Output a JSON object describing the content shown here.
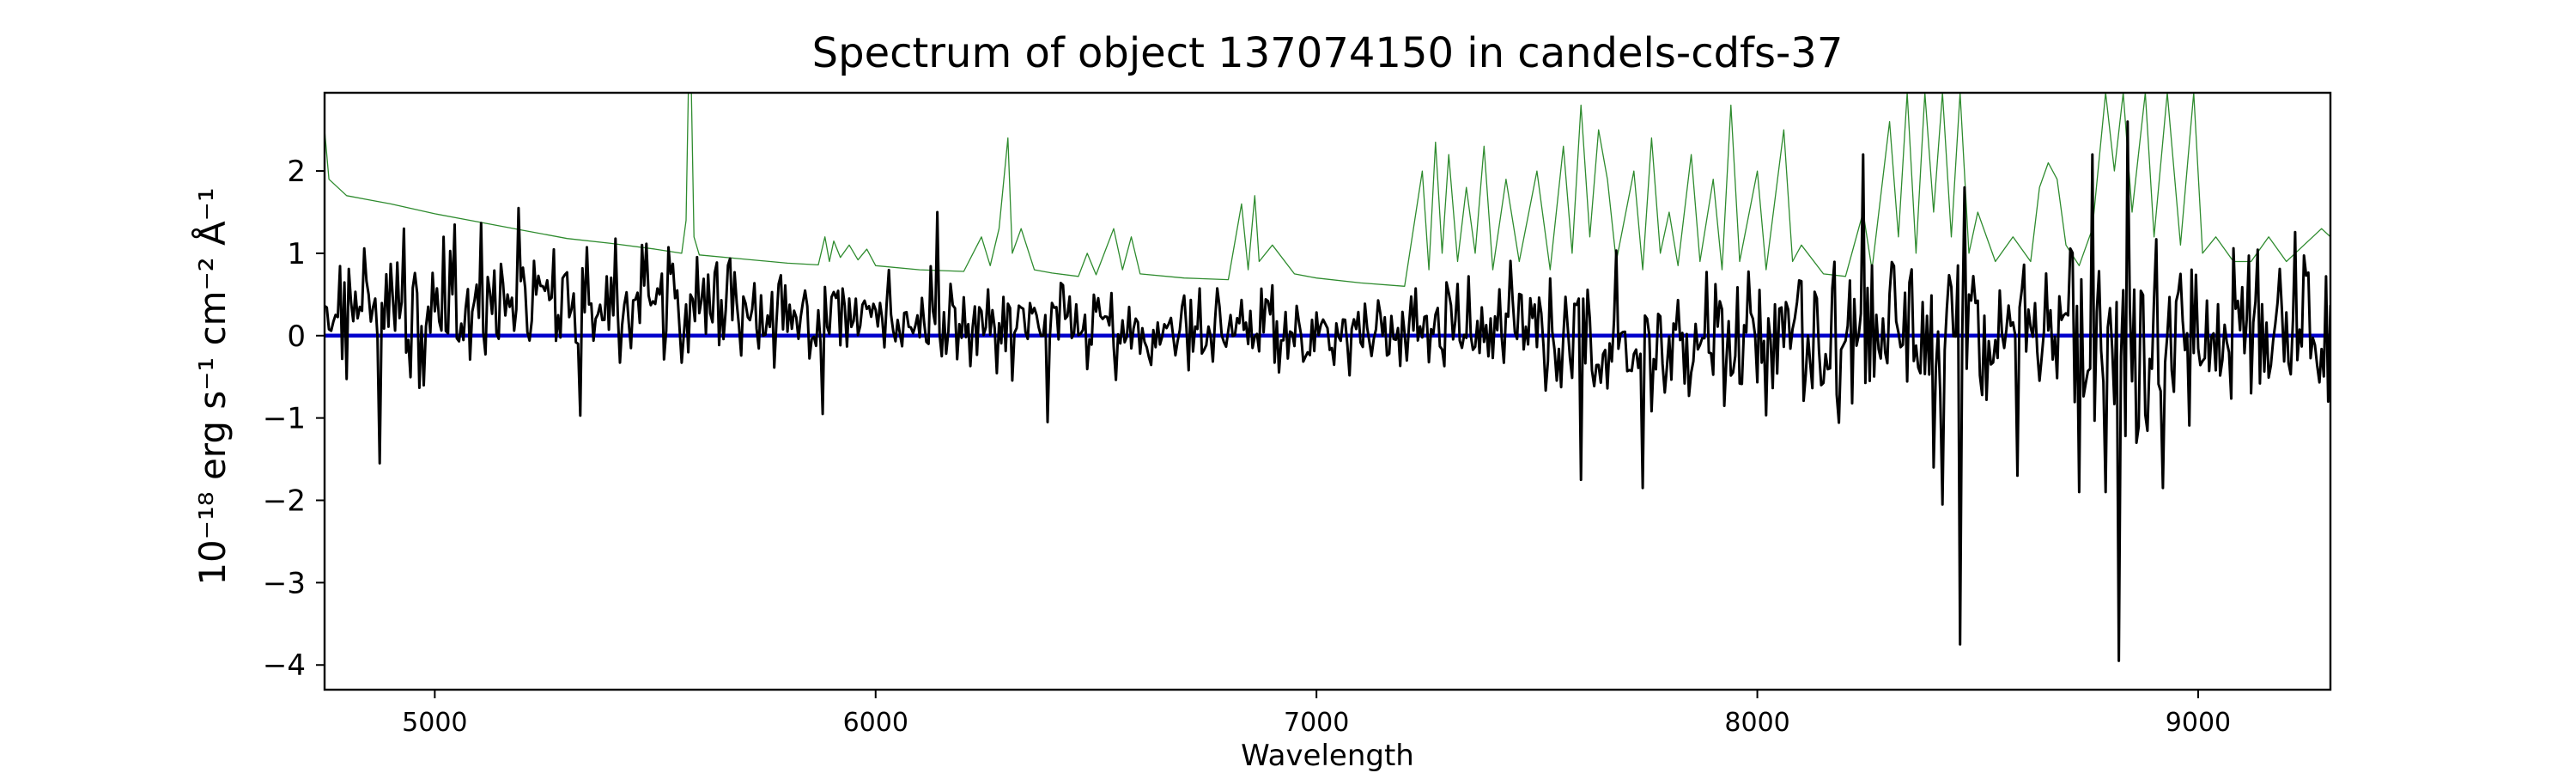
{
  "chart_data": {
    "type": "line",
    "title": "Spectrum of object 137074150 in candels-cdfs-37",
    "xlabel": "Wavelength",
    "ylabel": "10⁻¹⁸ erg s⁻¹ cm⁻² Å⁻¹",
    "xlim": [
      4750,
      9300
    ],
    "ylim": [
      -4.3,
      2.95
    ],
    "x_ticks": [
      5000,
      6000,
      7000,
      8000,
      9000
    ],
    "y_ticks": [
      -4,
      -3,
      -2,
      -1,
      0,
      1,
      2
    ],
    "grid": false,
    "legend": "none",
    "series": [
      {
        "role": "error-spectrum",
        "color": "#2e8b2e",
        "style": "thin",
        "points": [
          [
            4750,
            2.5
          ],
          [
            4760,
            1.9
          ],
          [
            4800,
            1.7
          ],
          [
            4850,
            1.65
          ],
          [
            4900,
            1.6
          ],
          [
            5000,
            1.48
          ],
          [
            5100,
            1.38
          ],
          [
            5200,
            1.28
          ],
          [
            5300,
            1.18
          ],
          [
            5400,
            1.12
          ],
          [
            5500,
            1.05
          ],
          [
            5560,
            1.0
          ],
          [
            5570,
            1.4
          ],
          [
            5575,
            2.95
          ],
          [
            5582,
            2.95
          ],
          [
            5588,
            1.2
          ],
          [
            5600,
            0.98
          ],
          [
            5700,
            0.93
          ],
          [
            5800,
            0.88
          ],
          [
            5870,
            0.86
          ],
          [
            5885,
            1.2
          ],
          [
            5895,
            0.9
          ],
          [
            5905,
            1.15
          ],
          [
            5920,
            0.95
          ],
          [
            5940,
            1.1
          ],
          [
            5960,
            0.92
          ],
          [
            5980,
            1.05
          ],
          [
            6000,
            0.85
          ],
          [
            6100,
            0.8
          ],
          [
            6200,
            0.78
          ],
          [
            6240,
            1.2
          ],
          [
            6260,
            0.85
          ],
          [
            6280,
            1.3
          ],
          [
            6300,
            2.4
          ],
          [
            6310,
            1.0
          ],
          [
            6330,
            1.3
          ],
          [
            6360,
            0.8
          ],
          [
            6400,
            0.76
          ],
          [
            6460,
            0.72
          ],
          [
            6480,
            1.0
          ],
          [
            6500,
            0.74
          ],
          [
            6540,
            1.3
          ],
          [
            6560,
            0.8
          ],
          [
            6580,
            1.2
          ],
          [
            6600,
            0.75
          ],
          [
            6700,
            0.7
          ],
          [
            6800,
            0.68
          ],
          [
            6830,
            1.6
          ],
          [
            6845,
            0.8
          ],
          [
            6860,
            1.7
          ],
          [
            6870,
            0.9
          ],
          [
            6900,
            1.1
          ],
          [
            6950,
            0.75
          ],
          [
            7000,
            0.7
          ],
          [
            7100,
            0.64
          ],
          [
            7200,
            0.6
          ],
          [
            7240,
            2.0
          ],
          [
            7255,
            0.8
          ],
          [
            7270,
            2.35
          ],
          [
            7285,
            1.0
          ],
          [
            7300,
            2.2
          ],
          [
            7320,
            0.9
          ],
          [
            7340,
            1.8
          ],
          [
            7360,
            1.0
          ],
          [
            7380,
            2.3
          ],
          [
            7400,
            0.8
          ],
          [
            7430,
            1.9
          ],
          [
            7460,
            0.9
          ],
          [
            7500,
            2.0
          ],
          [
            7530,
            0.8
          ],
          [
            7560,
            2.3
          ],
          [
            7580,
            1.0
          ],
          [
            7600,
            2.8
          ],
          [
            7620,
            1.2
          ],
          [
            7640,
            2.5
          ],
          [
            7660,
            1.9
          ],
          [
            7680,
            0.9
          ],
          [
            7720,
            2.0
          ],
          [
            7740,
            0.8
          ],
          [
            7760,
            2.4
          ],
          [
            7780,
            1.0
          ],
          [
            7800,
            1.5
          ],
          [
            7820,
            0.85
          ],
          [
            7850,
            2.2
          ],
          [
            7870,
            0.9
          ],
          [
            7900,
            1.9
          ],
          [
            7920,
            0.8
          ],
          [
            7940,
            2.8
          ],
          [
            7960,
            0.9
          ],
          [
            8000,
            2.0
          ],
          [
            8020,
            0.8
          ],
          [
            8060,
            2.5
          ],
          [
            8080,
            0.9
          ],
          [
            8100,
            1.1
          ],
          [
            8150,
            0.75
          ],
          [
            8200,
            0.72
          ],
          [
            8240,
            1.5
          ],
          [
            8260,
            0.8
          ],
          [
            8300,
            2.6
          ],
          [
            8320,
            1.2
          ],
          [
            8340,
            2.95
          ],
          [
            8360,
            1.0
          ],
          [
            8380,
            2.95
          ],
          [
            8400,
            1.5
          ],
          [
            8420,
            2.95
          ],
          [
            8440,
            1.2
          ],
          [
            8460,
            2.95
          ],
          [
            8480,
            1.0
          ],
          [
            8500,
            1.5
          ],
          [
            8540,
            0.9
          ],
          [
            8580,
            1.2
          ],
          [
            8620,
            0.9
          ],
          [
            8640,
            1.8
          ],
          [
            8660,
            2.1
          ],
          [
            8680,
            1.9
          ],
          [
            8700,
            1.1
          ],
          [
            8730,
            0.85
          ],
          [
            8760,
            1.3
          ],
          [
            8790,
            2.95
          ],
          [
            8810,
            2.0
          ],
          [
            8830,
            2.95
          ],
          [
            8850,
            1.5
          ],
          [
            8880,
            2.95
          ],
          [
            8900,
            1.2
          ],
          [
            8930,
            2.95
          ],
          [
            8960,
            1.1
          ],
          [
            8990,
            2.95
          ],
          [
            9010,
            1.0
          ],
          [
            9040,
            1.2
          ],
          [
            9080,
            0.9
          ],
          [
            9120,
            0.9
          ],
          [
            9160,
            1.2
          ],
          [
            9200,
            0.9
          ],
          [
            9240,
            1.1
          ],
          [
            9280,
            1.3
          ],
          [
            9300,
            1.2
          ]
        ]
      },
      {
        "role": "zero-line",
        "color": "#0000cc",
        "style": "thick",
        "points": [
          [
            4750,
            0.0
          ],
          [
            9300,
            0.0
          ]
        ]
      },
      {
        "role": "spectrum",
        "color": "#000000",
        "style": "medium",
        "x_start": 4750,
        "x_end": 9300,
        "step": 5,
        "amplitude_points": [
          [
            4750,
            0.75
          ],
          [
            5000,
            0.7
          ],
          [
            5500,
            0.55
          ],
          [
            6500,
            0.42
          ],
          [
            7000,
            0.4
          ],
          [
            7300,
            0.5
          ],
          [
            7600,
            0.65
          ],
          [
            8000,
            0.7
          ],
          [
            8300,
            0.8
          ],
          [
            8800,
            1.0
          ],
          [
            9300,
            0.85
          ]
        ],
        "offset_points": [
          [
            4750,
            0.3
          ],
          [
            5200,
            0.45
          ],
          [
            5600,
            0.3
          ],
          [
            6000,
            0.2
          ],
          [
            6500,
            0.1
          ],
          [
            7000,
            0.05
          ],
          [
            8000,
            0.0
          ],
          [
            9300,
            0.1
          ]
        ],
        "features": [
          [
            4875,
            -1.55
          ],
          [
            4930,
            1.3
          ],
          [
            5020,
            1.2
          ],
          [
            5190,
            1.55
          ],
          [
            5330,
            -0.97
          ],
          [
            5880,
            -0.95
          ],
          [
            6140,
            1.5
          ],
          [
            6390,
            -1.05
          ],
          [
            7600,
            -1.75
          ],
          [
            7740,
            -1.85
          ],
          [
            8240,
            2.2
          ],
          [
            8400,
            -1.6
          ],
          [
            8420,
            -2.05
          ],
          [
            8460,
            -3.75
          ],
          [
            8470,
            1.8
          ],
          [
            8590,
            -1.7
          ],
          [
            8730,
            -1.9
          ],
          [
            8760,
            2.2
          ],
          [
            8790,
            -1.9
          ],
          [
            8820,
            -3.95
          ],
          [
            8840,
            2.6
          ],
          [
            8920,
            -1.85
          ]
        ]
      }
    ]
  }
}
